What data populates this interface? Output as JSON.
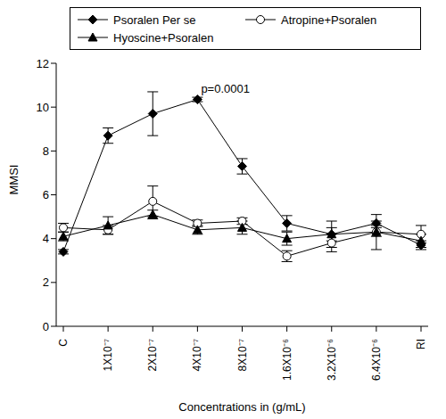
{
  "chart_data": {
    "type": "line",
    "x_label": "Concentrations in (g/mL)",
    "y_label": "MMSI",
    "categories": [
      "C",
      "1X10⁻⁷",
      "2X10⁻⁷",
      "4X10⁻⁷",
      "8X10⁻⁷",
      "1.6X10⁻⁶",
      "3.2X10⁻⁶",
      "6.4X10⁻⁶",
      "RI"
    ],
    "ylim": [
      0,
      12
    ],
    "yticks": [
      0,
      2,
      4,
      6,
      8,
      10,
      12
    ],
    "grid": false,
    "legend": "top",
    "series": [
      {
        "name": "Psoralen Per se",
        "color": "#000000",
        "marker": "diamond",
        "values": [
          3.4,
          8.7,
          9.7,
          10.35,
          7.3,
          4.7,
          4.2,
          4.7,
          3.7
        ],
        "errors": [
          0.1,
          0.35,
          1.0,
          0.1,
          0.35,
          0.35,
          0.3,
          0.1,
          0.2
        ]
      },
      {
        "name": "Atropine+Psoralen",
        "color": "#000000",
        "marker": "open_circle",
        "values": [
          4.5,
          4.4,
          5.7,
          4.7,
          4.8,
          3.2,
          3.8,
          4.3,
          4.2
        ],
        "errors": [
          0.2,
          0.2,
          0.7,
          0.15,
          0.15,
          0.25,
          0.4,
          0.2,
          0.4
        ]
      },
      {
        "name": "Hyoscine+Psoralen",
        "color": "#000000",
        "marker": "triangle",
        "values": [
          4.1,
          4.6,
          5.1,
          4.4,
          4.5,
          4.0,
          4.2,
          4.3,
          3.9
        ],
        "errors": [
          0.2,
          0.4,
          0.2,
          0.2,
          0.3,
          0.3,
          0.6,
          0.8,
          0.3
        ]
      }
    ],
    "annotations": [
      {
        "text": "p=0.0001",
        "x": "4X10⁻⁷",
        "y": 10.35
      }
    ]
  }
}
